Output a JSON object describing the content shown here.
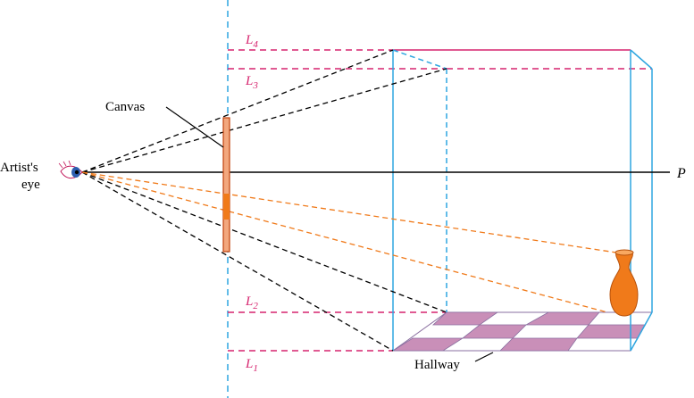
{
  "labels": {
    "canvas": "Canvas",
    "artist_line1": "Artist's",
    "artist_line2": "eye",
    "axis_p": "P",
    "hallway": "Hallway",
    "l4": {
      "base": "L",
      "sub": "4"
    },
    "l3": {
      "base": "L",
      "sub": "3"
    },
    "l2": {
      "base": "L",
      "sub": "2"
    },
    "l1": {
      "base": "L",
      "sub": "1"
    }
  },
  "colors": {
    "magenta": "#d6246e",
    "blue": "#2ea6e0",
    "orange": "#f07a1a",
    "floor_tile": "#c98fb8",
    "floor_edge": "#8a6fa0",
    "canvas_fill": "#f2a77e",
    "canvas_edge": "#c2410c"
  }
}
